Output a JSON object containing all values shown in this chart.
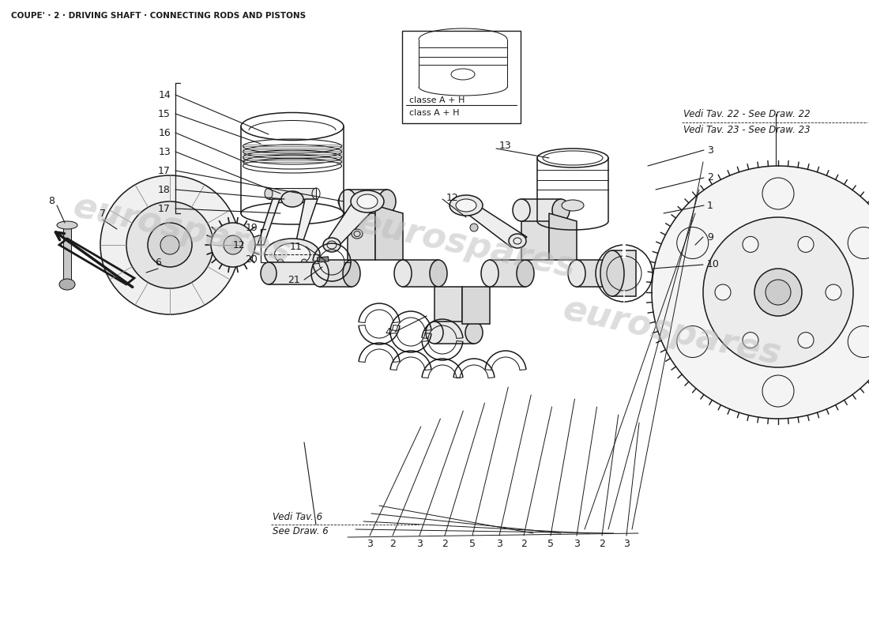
{
  "title": "COUPE' · 2 · DRIVING SHAFT · CONNECTING RODS AND PISTONS",
  "bg_color": "#ffffff",
  "lc": "#1a1a1a",
  "watermark_color": "#d0d0d0",
  "watermark_alpha": 0.5,
  "see_draw_1": "Vedi Tav. 22 - See Draw. 22",
  "see_draw_2": "Vedi Tav. 23 - See Draw. 23",
  "see_draw_3": "Vedi Tav. 6",
  "see_draw_4": "See Draw. 6",
  "callout_text_1": "classe A + H",
  "callout_text_2": "class A + H",
  "bottom_nums": [
    "3",
    "2",
    "3",
    "2",
    "5",
    "3",
    "2",
    "5",
    "3",
    "2",
    "3"
  ],
  "bottom_x": [
    468,
    497,
    531,
    563,
    598,
    632,
    663,
    697,
    730,
    762,
    793
  ]
}
